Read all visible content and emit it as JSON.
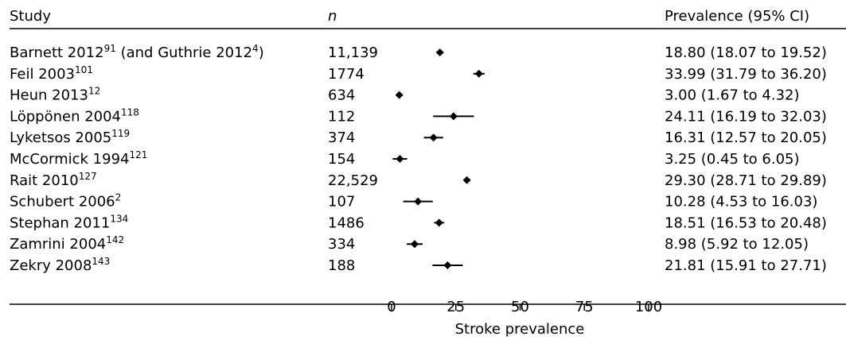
{
  "columns": {
    "study": "Study",
    "n": "n",
    "prevalence": "Prevalence (95% CI)"
  },
  "chart_data": {
    "type": "forest",
    "xlabel": "Stroke prevalence",
    "xlim": [
      0,
      100
    ],
    "xticks": [
      0,
      25,
      50,
      75,
      100
    ],
    "xtick_labels": [
      "0",
      "25",
      "50",
      "75",
      "100"
    ],
    "rows": [
      {
        "name_main": "Barnett 2012",
        "sup": "91",
        "name_tail": " (and Guthrie 2012",
        "sup2": "4",
        "name_end": ")",
        "n": "11,139",
        "estimate": 18.8,
        "lower": 18.07,
        "upper": 19.52,
        "ci_text": "18.80 (18.07 to 19.52)"
      },
      {
        "name_main": "Feil 2003",
        "sup": "101",
        "n": "1774",
        "estimate": 33.99,
        "lower": 31.79,
        "upper": 36.2,
        "ci_text": "33.99 (31.79 to 36.20)"
      },
      {
        "name_main": "Heun 2013",
        "sup": "12",
        "n": "634",
        "estimate": 3.0,
        "lower": 1.67,
        "upper": 4.32,
        "ci_text": "3.00 (1.67 to 4.32)"
      },
      {
        "name_main": "Löppönen 2004",
        "sup": "118",
        "n": "112",
        "estimate": 24.11,
        "lower": 16.19,
        "upper": 32.03,
        "ci_text": "24.11 (16.19 to 32.03)"
      },
      {
        "name_main": "Lyketsos 2005",
        "sup": "119",
        "n": "374",
        "estimate": 16.31,
        "lower": 12.57,
        "upper": 20.05,
        "ci_text": "16.31 (12.57 to 20.05)"
      },
      {
        "name_main": "McCormick 1994",
        "sup": "121",
        "n": "154",
        "estimate": 3.25,
        "lower": 0.45,
        "upper": 6.05,
        "ci_text": "3.25 (0.45 to 6.05)"
      },
      {
        "name_main": "Rait 2010",
        "sup": "127",
        "n": "22,529",
        "estimate": 29.3,
        "lower": 28.71,
        "upper": 29.89,
        "ci_text": "29.30 (28.71 to 29.89)"
      },
      {
        "name_main": "Schubert 2006",
        "sup": "2",
        "n": "107",
        "estimate": 10.28,
        "lower": 4.53,
        "upper": 16.03,
        "ci_text": "10.28 (4.53 to 16.03)"
      },
      {
        "name_main": "Stephan 2011",
        "sup": "134",
        "n": "1486",
        "estimate": 18.51,
        "lower": 16.53,
        "upper": 20.48,
        "ci_text": "18.51 (16.53 to 20.48)"
      },
      {
        "name_main": "Zamrini 2004",
        "sup": "142",
        "n": "334",
        "estimate": 8.98,
        "lower": 5.92,
        "upper": 12.05,
        "ci_text": "8.98 (5.92 to 12.05)"
      },
      {
        "name_main": "Zekry 2008",
        "sup": "143",
        "n": "188",
        "estimate": 21.81,
        "lower": 15.91,
        "upper": 27.71,
        "ci_text": "21.81 (15.91 to 27.71)"
      }
    ]
  }
}
